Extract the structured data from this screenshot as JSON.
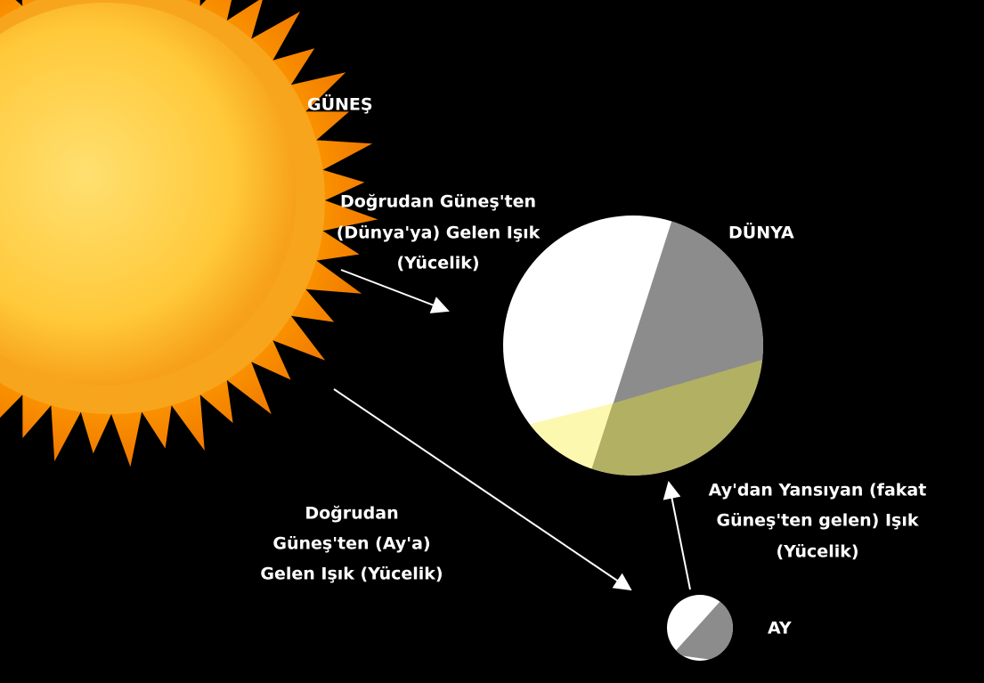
{
  "labels": {
    "sun": "GÜNEŞ",
    "earth": "DÜNYA",
    "moon": "AY"
  },
  "annotations": [
    {
      "lines": [
        "Doğrudan Güneş'ten",
        "(Dünya'ya) Gelen Işık",
        "(Yücelik)"
      ]
    },
    {
      "lines": [
        "Doğrudan",
        "Güneş'ten (Ay'a)",
        "Gelen Işık (Yücelik)"
      ]
    },
    {
      "lines": [
        "Ay'dan Yansıyan (fakat",
        "Güneş'ten gelen) Işık",
        "(Yücelik)"
      ]
    }
  ]
}
